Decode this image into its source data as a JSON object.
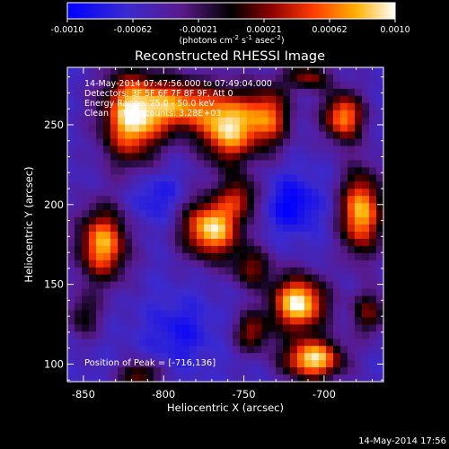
{
  "chart_data": {
    "type": "heatmap",
    "title": "Reconstructed RHESSI Image",
    "xlabel": "Heliocentric X (arcsec)",
    "ylabel": "Heliocentric Y (arcsec)",
    "xlim": [
      -860,
      -663
    ],
    "ylim": [
      89,
      286
    ],
    "xticks": [
      -850,
      -800,
      -750,
      -700
    ],
    "yticks": [
      100,
      150,
      200,
      250
    ],
    "colorbar": {
      "ticks": [
        "-0.0010",
        "-0.00062",
        "-0.00021",
        "0.00021",
        "0.00062",
        "0.0010"
      ],
      "range": [
        -0.001,
        0.001
      ],
      "unit_label": "(photons cm",
      "unit_sup1": "-2",
      "unit_mid": " s",
      "unit_sup2": "-1",
      "unit_mid2": " asec",
      "unit_sup3": "-2",
      "unit_end": ")"
    },
    "annotations": [
      "14-May-2014 07:47:56.000 to 07:49:04.000",
      "Detectors: 3F 5F 6F 7F 8F 9F, Att 0",
      "Energy Range: 25.0 - 50.0 keV",
      "Clean     Total counts: 3.28E+03"
    ],
    "peak_label": "Position of Peak = [-716,136]",
    "peak": [
      -716,
      136
    ],
    "blobs": [
      {
        "x": -820,
        "y": 255,
        "sx": 13,
        "sy": 20,
        "a": 0.95
      },
      {
        "x": -838,
        "y": 175,
        "sx": 11,
        "sy": 16,
        "a": 0.85
      },
      {
        "x": -790,
        "y": 262,
        "sx": 15,
        "sy": 12,
        "a": 0.75
      },
      {
        "x": -770,
        "y": 185,
        "sx": 13,
        "sy": 13,
        "a": 0.95
      },
      {
        "x": -760,
        "y": 248,
        "sx": 12,
        "sy": 16,
        "a": 0.9
      },
      {
        "x": -735,
        "y": 255,
        "sx": 10,
        "sy": 14,
        "a": 0.7
      },
      {
        "x": -752,
        "y": 205,
        "sx": 9,
        "sy": 9,
        "a": 0.45
      },
      {
        "x": -688,
        "y": 255,
        "sx": 9,
        "sy": 11,
        "a": 0.8
      },
      {
        "x": -677,
        "y": 195,
        "sx": 9,
        "sy": 18,
        "a": 0.9
      },
      {
        "x": -716,
        "y": 138,
        "sx": 12,
        "sy": 12,
        "a": 1.0
      },
      {
        "x": -707,
        "y": 103,
        "sx": 13,
        "sy": 9,
        "a": 0.95
      },
      {
        "x": -745,
        "y": 120,
        "sx": 8,
        "sy": 9,
        "a": 0.5
      },
      {
        "x": -672,
        "y": 132,
        "sx": 8,
        "sy": 10,
        "a": 0.45
      },
      {
        "x": -815,
        "y": 93,
        "sx": 9,
        "sy": 6,
        "a": 0.5
      },
      {
        "x": -745,
        "y": 160,
        "sx": 9,
        "sy": 9,
        "a": 0.45
      },
      {
        "x": -710,
        "y": 280,
        "sx": 10,
        "sy": 6,
        "a": 0.5
      },
      {
        "x": -850,
        "y": 130,
        "sx": 8,
        "sy": 10,
        "a": 0.35
      }
    ],
    "background": -0.55,
    "holes": [
      {
        "x": -720,
        "y": 200,
        "sx": 12,
        "sy": 12,
        "a": 0.45
      },
      {
        "x": -805,
        "y": 205,
        "sx": 12,
        "sy": 12,
        "a": 0.3
      },
      {
        "x": -790,
        "y": 120,
        "sx": 14,
        "sy": 14,
        "a": 0.3
      }
    ]
  },
  "footer_date": "14-May-2014 17:56"
}
